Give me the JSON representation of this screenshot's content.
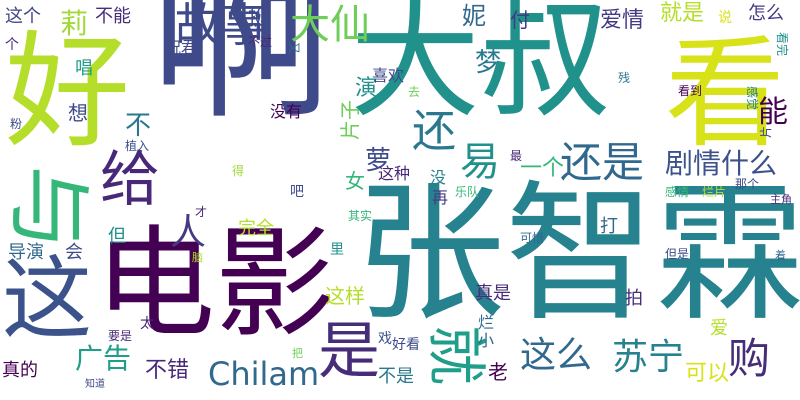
{
  "words": [
    {
      "text": "啊",
      "color": "#3e4a89"
    },
    {
      "text": "大叔",
      "color": "#21918c"
    },
    {
      "text": "张智霖",
      "color": "#26828e"
    },
    {
      "text": "电影",
      "color": "#440154"
    },
    {
      "text": "好",
      "color": "#b5de2b"
    },
    {
      "text": "看",
      "color": "#d8e219"
    },
    {
      "text": "这",
      "color": "#3b528b"
    },
    {
      "text": "与",
      "color": "#35b779"
    },
    {
      "text": "给",
      "color": "#482878"
    },
    {
      "text": "是",
      "color": "#472c7a"
    },
    {
      "text": "就",
      "color": "#1f9e89"
    },
    {
      "text": "故事",
      "color": "#3e4a89"
    },
    {
      "text": "大仙",
      "color": "#6ece58"
    },
    {
      "text": "还是",
      "color": "#31688e"
    },
    {
      "text": "还",
      "color": "#2a788e"
    },
    {
      "text": "易",
      "color": "#21918c"
    },
    {
      "text": "剧情什么",
      "color": "#3b528b"
    },
    {
      "text": "这么",
      "color": "#31688e"
    },
    {
      "text": "苏宁",
      "color": "#26828e"
    },
    {
      "text": "购",
      "color": "#472c7a"
    },
    {
      "text": "Chilam",
      "color": "#31688e"
    },
    {
      "text": "广告",
      "color": "#1f9e89"
    },
    {
      "text": "能",
      "color": "#440154"
    },
    {
      "text": "人",
      "color": "#443983"
    },
    {
      "text": "萝",
      "color": "#3e4a89"
    },
    {
      "text": "莉",
      "color": "#a0da39"
    },
    {
      "text": "妮",
      "color": "#31688e"
    },
    {
      "text": "爱情",
      "color": "#443983"
    },
    {
      "text": "梦",
      "color": "#2a788e"
    },
    {
      "text": "就是",
      "color": "#b5de2b"
    },
    {
      "text": "不错",
      "color": "#482878"
    },
    {
      "text": "可以",
      "color": "#d8e219"
    },
    {
      "text": "完全",
      "color": "#b5de2b"
    },
    {
      "text": "不是",
      "color": "#2a788e"
    },
    {
      "text": "这样",
      "color": "#b5de2b"
    },
    {
      "text": "演",
      "color": "#21918c"
    },
    {
      "text": "一个",
      "color": "#35b779"
    },
    {
      "text": "喜欢",
      "color": "#3e4a89"
    },
    {
      "text": "付",
      "color": "#443983"
    },
    {
      "text": "不能",
      "color": "#472c7a"
    },
    {
      "text": "这个",
      "color": "#414487"
    },
    {
      "text": "挺",
      "color": "#3e4a89"
    },
    {
      "text": "怎么",
      "color": "#443983"
    },
    {
      "text": "导演",
      "color": "#31688e"
    },
    {
      "text": "真是",
      "color": "#472c7a"
    },
    {
      "text": "打",
      "color": "#31688e"
    },
    {
      "text": "拍",
      "color": "#472c7a"
    },
    {
      "text": "爱",
      "color": "#b5de2b"
    },
    {
      "text": "老",
      "color": "#440154"
    },
    {
      "text": "戏",
      "color": "#3b528b"
    },
    {
      "text": "好看",
      "color": "#3e4a89"
    },
    {
      "text": "真的",
      "color": "#440154"
    },
    {
      "text": "不",
      "color": "#2a788e"
    },
    {
      "text": "想",
      "color": "#3e4a89"
    },
    {
      "text": "没有",
      "color": "#440154"
    },
    {
      "text": "唱",
      "color": "#1f9e89"
    },
    {
      "text": "太",
      "color": "#482878"
    },
    {
      "text": "但",
      "color": "#21918c"
    },
    {
      "text": "会",
      "color": "#3e4a89"
    },
    {
      "text": "女",
      "color": "#35b779"
    },
    {
      "text": "没",
      "color": "#26828e"
    },
    {
      "text": "这种",
      "color": "#482878"
    },
    {
      "text": "再",
      "color": "#443983"
    },
    {
      "text": "片子",
      "color": "#6ece58"
    },
    {
      "text": "里",
      "color": "#21918c"
    },
    {
      "text": "烂",
      "color": "#31688e"
    },
    {
      "text": "小",
      "color": "#31688e"
    },
    {
      "text": "吧",
      "color": "#3e4a89"
    },
    {
      "text": "个",
      "color": "#482878"
    },
    {
      "text": "说",
      "color": "#d8e219"
    },
    {
      "text": "看完",
      "color": "#21918c"
    },
    {
      "text": "祝君",
      "color": "#3e4a89"
    },
    {
      "text": "不过",
      "color": "#482878"
    },
    {
      "text": "又",
      "color": "#31688e"
    },
    {
      "text": "去",
      "color": "#6ece58"
    },
    {
      "text": "看到",
      "color": "#440154"
    },
    {
      "text": "感觉",
      "color": "#26828e"
    },
    {
      "text": "最",
      "color": "#482878"
    },
    {
      "text": "残",
      "color": "#2a788e"
    },
    {
      "text": "片",
      "color": "#3e4a89"
    },
    {
      "text": "粉",
      "color": "#3e4a89"
    },
    {
      "text": "植入",
      "color": "#3b528b"
    },
    {
      "text": "乐队",
      "color": "#35b779"
    },
    {
      "text": "感情",
      "color": "#35b779"
    },
    {
      "text": "烂片",
      "color": "#b5de2b"
    },
    {
      "text": "那个",
      "color": "#3e4a89"
    },
    {
      "text": "主角",
      "color": "#472c7a"
    },
    {
      "text": "得",
      "color": "#a0da39"
    },
    {
      "text": "才",
      "color": "#482878"
    },
    {
      "text": "其实",
      "color": "#35b779"
    },
    {
      "text": "可惜",
      "color": "#31688e"
    },
    {
      "text": "但是",
      "color": "#3e4a89"
    },
    {
      "text": "着",
      "color": "#31688e"
    },
    {
      "text": "脑",
      "color": "#b5de2b"
    },
    {
      "text": "要是",
      "color": "#482878"
    },
    {
      "text": "知道",
      "color": "#3e4a89"
    },
    {
      "text": "把",
      "color": "#6ece58"
    }
  ]
}
